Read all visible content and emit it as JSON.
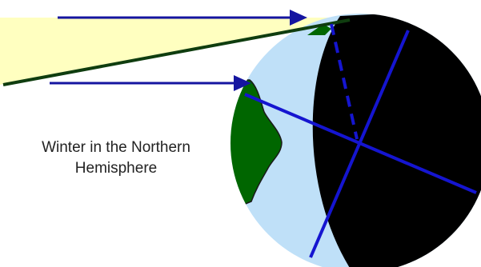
{
  "caption": {
    "line1": "Winter in the Northern",
    "line2": "Hemisphere"
  },
  "colors": {
    "sunlight_band": "#ffffc0",
    "ocean_day_side": "#bfe0f8",
    "night_side": "#000000",
    "land": "#006600",
    "land_outline": "#1a1a1a",
    "sun_ray_arrows": "#1515a0",
    "ecliptic_line": "#0f3d0f",
    "earth_axis_and_equator": "#1515d0"
  },
  "icons": {
    "sun_ray_arrowheads": "triangle-arrowhead"
  }
}
